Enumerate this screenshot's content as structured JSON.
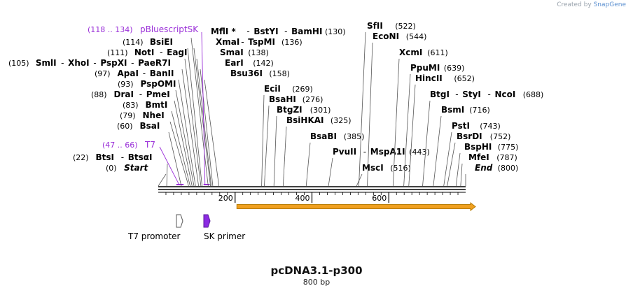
{
  "header": {
    "credit_prefix": "Created by",
    "credit_brand": "SnapGene"
  },
  "map": {
    "name": "pcDNA3.1-p300",
    "length_label": "800 bp",
    "length_bp": 800,
    "colors": {
      "enzyme": "#000000",
      "primer": "#9a2fd8",
      "orf": "#f0a020",
      "orf_border": "#b77a00",
      "t7_feature": "#ffffff",
      "sk_feature": "#8b2be2"
    },
    "ruler_ticks": [
      {
        "bp": 200,
        "label": "200"
      },
      {
        "bp": 400,
        "label": "400"
      },
      {
        "bp": 600,
        "label": "600"
      }
    ],
    "sites": [
      {
        "bp": 0,
        "pos_label": "(0)",
        "names": [
          "Start"
        ],
        "italic": true
      },
      {
        "bp": 22,
        "pos_label": "(22)",
        "names": [
          "BtsI",
          "BtsαI"
        ]
      },
      {
        "bp": 60,
        "pos_label": "(60)",
        "names": [
          "BsaI"
        ]
      },
      {
        "bp": 79,
        "pos_label": "(79)",
        "names": [
          "NheI"
        ]
      },
      {
        "bp": 83,
        "pos_label": "(83)",
        "names": [
          "BmtI"
        ]
      },
      {
        "bp": 88,
        "pos_label": "(88)",
        "names": [
          "DraI",
          "PmeI"
        ]
      },
      {
        "bp": 93,
        "pos_label": "(93)",
        "names": [
          "PspOMI"
        ]
      },
      {
        "bp": 97,
        "pos_label": "(97)",
        "names": [
          "ApaI",
          "BanII"
        ]
      },
      {
        "bp": 105,
        "pos_label": "(105)",
        "names": [
          "SmlI",
          "XhoI",
          "PspXI",
          "PaeR7I"
        ]
      },
      {
        "bp": 111,
        "pos_label": "(111)",
        "names": [
          "NotI",
          "EagI"
        ]
      },
      {
        "bp": 114,
        "pos_label": "(114)",
        "names": [
          "BsiEI"
        ]
      },
      {
        "bp": 130,
        "pos_label": "(130)",
        "names": [
          "MflI *",
          "BstYI",
          "BamHI"
        ]
      },
      {
        "bp": 136,
        "pos_label": "(136)",
        "names": [
          "XmaI",
          "TspMI"
        ]
      },
      {
        "bp": 138,
        "pos_label": "(138)",
        "names": [
          "SmaI"
        ]
      },
      {
        "bp": 142,
        "pos_label": "(142)",
        "names": [
          "EarI"
        ]
      },
      {
        "bp": 158,
        "pos_label": "(158)",
        "names": [
          "Bsu36I"
        ]
      },
      {
        "bp": 269,
        "pos_label": "(269)",
        "names": [
          "EciI"
        ]
      },
      {
        "bp": 276,
        "pos_label": "(276)",
        "names": [
          "BsaHI"
        ]
      },
      {
        "bp": 301,
        "pos_label": "(301)",
        "names": [
          "BtgZI"
        ]
      },
      {
        "bp": 325,
        "pos_label": "(325)",
        "names": [
          "BsiHKAI"
        ]
      },
      {
        "bp": 385,
        "pos_label": "(385)",
        "names": [
          "BsaBI"
        ]
      },
      {
        "bp": 443,
        "pos_label": "(443)",
        "names": [
          "PvuII",
          "MspA1I"
        ]
      },
      {
        "bp": 516,
        "pos_label": "(516)",
        "names": [
          "MscI"
        ]
      },
      {
        "bp": 522,
        "pos_label": "(522)",
        "names": [
          "SfII"
        ]
      },
      {
        "bp": 544,
        "pos_label": "(544)",
        "names": [
          "EcoNI"
        ]
      },
      {
        "bp": 611,
        "pos_label": "(611)",
        "names": [
          "XcmI"
        ]
      },
      {
        "bp": 639,
        "pos_label": "(639)",
        "names": [
          "PpuMI"
        ]
      },
      {
        "bp": 652,
        "pos_label": "(652)",
        "names": [
          "HincII"
        ]
      },
      {
        "bp": 688,
        "pos_label": "(688)",
        "names": [
          "BtgI",
          "StyI",
          "NcoI"
        ]
      },
      {
        "bp": 716,
        "pos_label": "(716)",
        "names": [
          "BsmI"
        ]
      },
      {
        "bp": 743,
        "pos_label": "(743)",
        "names": [
          "PstI"
        ]
      },
      {
        "bp": 752,
        "pos_label": "(752)",
        "names": [
          "BsrDI"
        ]
      },
      {
        "bp": 775,
        "pos_label": "(775)",
        "names": [
          "BspHI"
        ]
      },
      {
        "bp": 787,
        "pos_label": "(787)",
        "names": [
          "MfeI"
        ]
      },
      {
        "bp": 800,
        "pos_label": "(800)",
        "names": [
          "End"
        ],
        "italic": true
      }
    ],
    "primers": [
      {
        "name": "pBluescriptSK",
        "range_label": "(118 .. 134)",
        "start_bp": 118,
        "end_bp": 134
      },
      {
        "name": "T7",
        "range_label": "(47 .. 66)",
        "start_bp": 47,
        "end_bp": 66
      }
    ],
    "features": [
      {
        "name": "T7 promoter",
        "start_bp": 47,
        "end_bp": 66,
        "type": "promoter"
      },
      {
        "name": "SK primer",
        "start_bp": 118,
        "end_bp": 134,
        "type": "primer_bind"
      }
    ],
    "orf": {
      "start_bp": 201,
      "end_bp": 800,
      "direction": "forward"
    }
  }
}
